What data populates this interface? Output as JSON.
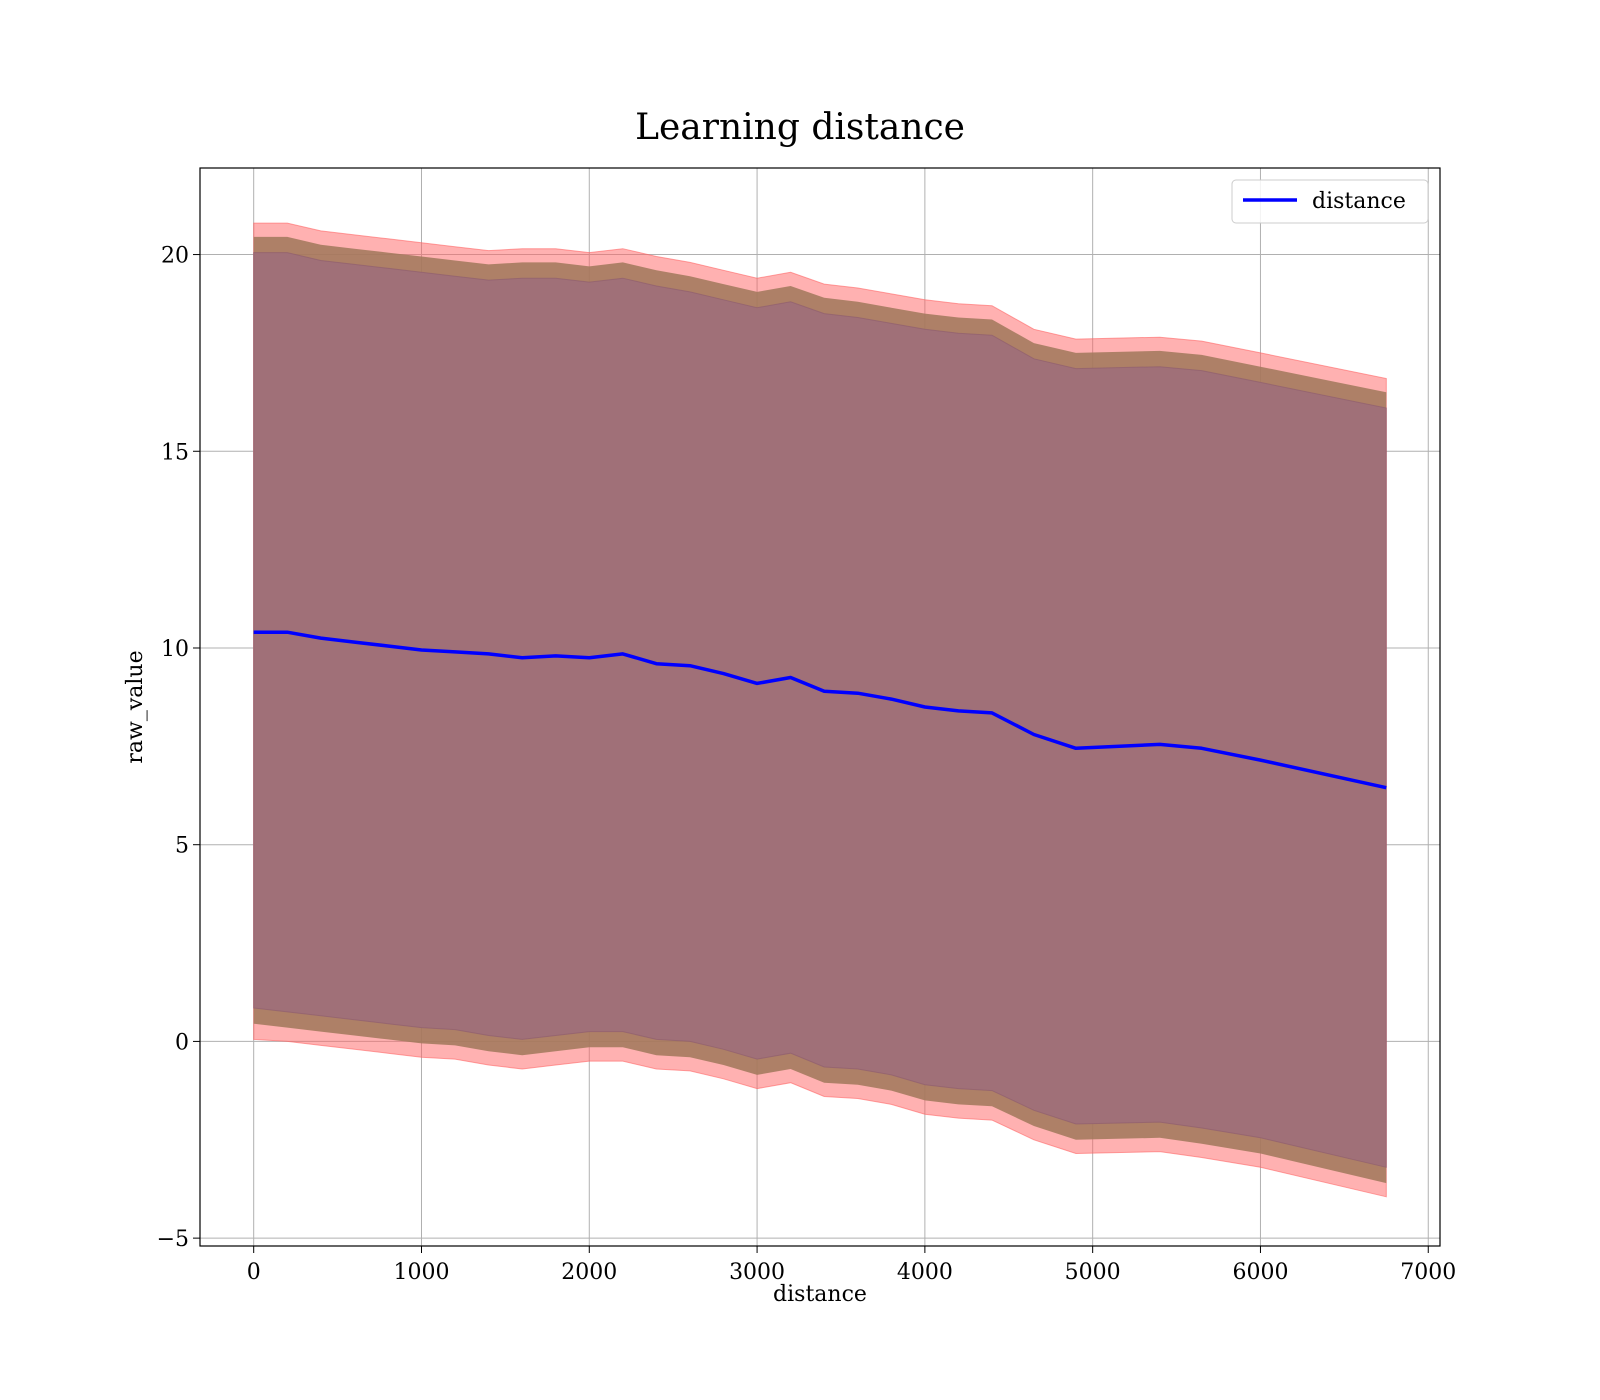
{
  "chart_data": {
    "type": "line",
    "title": "Learning distance",
    "xlabel": "distance",
    "ylabel": "raw_value",
    "xlim": [
      -320,
      7070
    ],
    "ylim": [
      -5.2,
      22.2
    ],
    "xticks": [
      0,
      1000,
      2000,
      3000,
      4000,
      5000,
      6000,
      7000
    ],
    "yticks": [
      -5,
      0,
      5,
      10,
      15,
      20
    ],
    "xtick_labels": [
      "0",
      "1000",
      "2000",
      "3000",
      "4000",
      "5000",
      "6000",
      "7000"
    ],
    "ytick_labels": [
      "−5",
      "0",
      "5",
      "10",
      "15",
      "20"
    ],
    "grid": true,
    "legend_position": "top-right",
    "series": [
      {
        "name": "distance",
        "color": "#0000ff",
        "x": [
          0,
          200,
          400,
          600,
          800,
          1000,
          1200,
          1400,
          1600,
          1800,
          2000,
          2200,
          2400,
          2600,
          2800,
          3000,
          3200,
          3400,
          3600,
          3800,
          4000,
          4200,
          4400,
          4650,
          4900,
          5400,
          5650,
          6000,
          6750
        ],
        "y": [
          10.4,
          10.4,
          10.25,
          10.15,
          10.05,
          9.95,
          9.9,
          9.85,
          9.75,
          9.8,
          9.75,
          9.85,
          9.6,
          9.55,
          9.35,
          9.1,
          9.25,
          8.9,
          8.85,
          8.7,
          8.5,
          8.4,
          8.35,
          7.8,
          7.45,
          7.55,
          7.45,
          7.15,
          6.45
        ],
        "wide_band": {
          "color": "#ff6464",
          "upper": [
            20.8,
            20.8,
            20.6,
            20.5,
            20.4,
            20.3,
            20.2,
            20.1,
            20.15,
            20.15,
            20.05,
            20.15,
            19.95,
            19.8,
            19.6,
            19.4,
            19.55,
            19.25,
            19.15,
            19.0,
            18.85,
            18.75,
            18.7,
            18.1,
            17.85,
            17.9,
            17.8,
            17.5,
            16.85
          ],
          "lower": [
            0.05,
            0.0,
            -0.1,
            -0.2,
            -0.3,
            -0.4,
            -0.45,
            -0.6,
            -0.7,
            -0.6,
            -0.5,
            -0.5,
            -0.7,
            -0.75,
            -0.95,
            -1.2,
            -1.05,
            -1.4,
            -1.45,
            -1.6,
            -1.85,
            -1.95,
            -2.0,
            -2.5,
            -2.85,
            -2.8,
            -2.95,
            -3.2,
            -3.95
          ]
        },
        "mid_band": {
          "color": "#a0785a",
          "upper": [
            20.45,
            20.45,
            20.25,
            20.15,
            20.05,
            19.95,
            19.85,
            19.75,
            19.8,
            19.8,
            19.7,
            19.8,
            19.6,
            19.45,
            19.25,
            19.05,
            19.2,
            18.9,
            18.8,
            18.65,
            18.5,
            18.4,
            18.35,
            17.75,
            17.5,
            17.55,
            17.45,
            17.15,
            16.5
          ],
          "lower": [
            0.45,
            0.35,
            0.25,
            0.15,
            0.05,
            -0.05,
            -0.1,
            -0.25,
            -0.35,
            -0.25,
            -0.15,
            -0.15,
            -0.35,
            -0.4,
            -0.6,
            -0.85,
            -0.7,
            -1.05,
            -1.1,
            -1.25,
            -1.5,
            -1.6,
            -1.65,
            -2.15,
            -2.5,
            -2.45,
            -2.6,
            -2.85,
            -3.6
          ]
        },
        "narrow_band": {
          "color": "#a07078",
          "upper": [
            20.05,
            20.05,
            19.85,
            19.75,
            19.65,
            19.55,
            19.45,
            19.35,
            19.4,
            19.4,
            19.3,
            19.4,
            19.2,
            19.05,
            18.85,
            18.65,
            18.8,
            18.5,
            18.4,
            18.25,
            18.1,
            18.0,
            17.95,
            17.35,
            17.1,
            17.15,
            17.05,
            16.75,
            16.1
          ],
          "lower": [
            0.85,
            0.75,
            0.65,
            0.55,
            0.45,
            0.35,
            0.3,
            0.15,
            0.05,
            0.15,
            0.25,
            0.25,
            0.05,
            0.0,
            -0.2,
            -0.45,
            -0.3,
            -0.65,
            -0.7,
            -0.85,
            -1.1,
            -1.2,
            -1.25,
            -1.75,
            -2.1,
            -2.05,
            -2.2,
            -2.45,
            -3.2
          ]
        }
      }
    ]
  }
}
